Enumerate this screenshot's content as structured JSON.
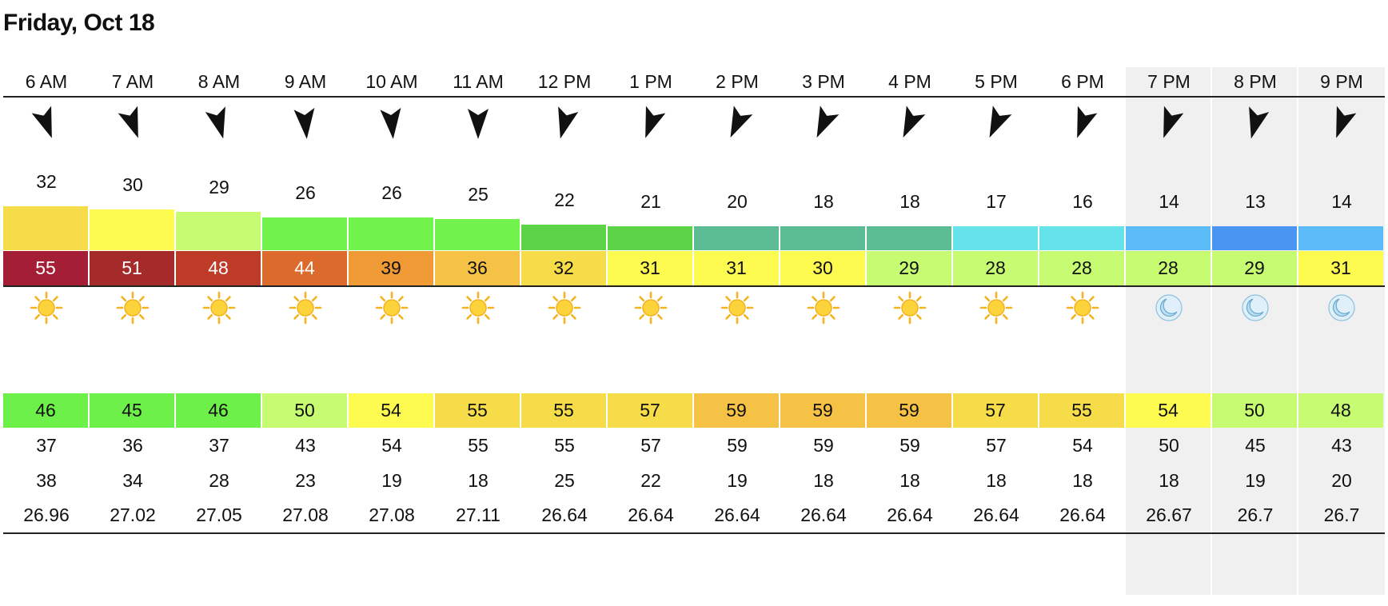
{
  "page_title": "Friday, Oct 18",
  "hours": [
    {
      "time": "6 AM",
      "wind_deg": 160,
      "gust": 32,
      "gust_color": "#f7dc4a",
      "wind": 55,
      "wind_color": "#a41e35",
      "wind_text": "#ffffff",
      "sky": "sun",
      "night": false,
      "temp": 46,
      "temp_color": "#6ef04a",
      "feels": 37,
      "dew": 38,
      "pressure": "26.96"
    },
    {
      "time": "7 AM",
      "wind_deg": 160,
      "gust": 30,
      "gust_color": "#fdfb4f",
      "wind": 51,
      "wind_color": "#a52a2a",
      "wind_text": "#ffffff",
      "sky": "sun",
      "night": false,
      "temp": 45,
      "temp_color": "#6ef04a",
      "feels": 36,
      "dew": 34,
      "pressure": "27.02"
    },
    {
      "time": "8 AM",
      "wind_deg": 165,
      "gust": 29,
      "gust_color": "#c6fb72",
      "wind": 48,
      "wind_color": "#bd3b27",
      "wind_text": "#ffffff",
      "sky": "sun",
      "night": false,
      "temp": 46,
      "temp_color": "#6ef04a",
      "feels": 37,
      "dew": 28,
      "pressure": "27.05"
    },
    {
      "time": "9 AM",
      "wind_deg": 175,
      "gust": 26,
      "gust_color": "#72f24c",
      "wind": 44,
      "wind_color": "#db6a2c",
      "wind_text": "#ffffff",
      "sky": "sun",
      "night": false,
      "temp": 50,
      "temp_color": "#c6fb72",
      "feels": 43,
      "dew": 23,
      "pressure": "27.08"
    },
    {
      "time": "10 AM",
      "wind_deg": 175,
      "gust": 26,
      "gust_color": "#72f24c",
      "wind": 39,
      "wind_color": "#f09a35",
      "wind_text": "#111111",
      "sky": "sun",
      "night": false,
      "temp": 54,
      "temp_color": "#fdfb4f",
      "feels": 54,
      "dew": 19,
      "pressure": "27.08"
    },
    {
      "time": "11 AM",
      "wind_deg": 180,
      "gust": 25,
      "gust_color": "#72f24c",
      "wind": 36,
      "wind_color": "#f5c245",
      "wind_text": "#111111",
      "sky": "sun",
      "night": false,
      "temp": 55,
      "temp_color": "#f7dc4a",
      "feels": 55,
      "dew": 18,
      "pressure": "27.11"
    },
    {
      "time": "12 PM",
      "wind_deg": 195,
      "gust": 22,
      "gust_color": "#5dd447",
      "wind": 32,
      "wind_color": "#f7dc4a",
      "wind_text": "#111111",
      "sky": "sun",
      "night": false,
      "temp": 55,
      "temp_color": "#f7dc4a",
      "feels": 55,
      "dew": 25,
      "pressure": "26.64"
    },
    {
      "time": "1 PM",
      "wind_deg": 200,
      "gust": 21,
      "gust_color": "#5dd447",
      "wind": 31,
      "wind_color": "#fdfb4f",
      "wind_text": "#111111",
      "sky": "sun",
      "night": false,
      "temp": 57,
      "temp_color": "#f7dc4a",
      "feels": 57,
      "dew": 22,
      "pressure": "26.64"
    },
    {
      "time": "2 PM",
      "wind_deg": 205,
      "gust": 20,
      "gust_color": "#5cbd95",
      "wind": 31,
      "wind_color": "#fdfb4f",
      "wind_text": "#111111",
      "sky": "sun",
      "night": false,
      "temp": 59,
      "temp_color": "#f5c245",
      "feels": 59,
      "dew": 19,
      "pressure": "26.64"
    },
    {
      "time": "3 PM",
      "wind_deg": 205,
      "gust": 18,
      "gust_color": "#5cbd95",
      "wind": 30,
      "wind_color": "#fdfb4f",
      "wind_text": "#111111",
      "sky": "sun",
      "night": false,
      "temp": 59,
      "temp_color": "#f5c245",
      "feels": 59,
      "dew": 18,
      "pressure": "26.64"
    },
    {
      "time": "4 PM",
      "wind_deg": 205,
      "gust": 18,
      "gust_color": "#5cbd95",
      "wind": 29,
      "wind_color": "#c6fb72",
      "wind_text": "#111111",
      "sky": "sun",
      "night": false,
      "temp": 59,
      "temp_color": "#f5c245",
      "feels": 59,
      "dew": 18,
      "pressure": "26.64"
    },
    {
      "time": "5 PM",
      "wind_deg": 205,
      "gust": 17,
      "gust_color": "#66e2ea",
      "wind": 28,
      "wind_color": "#c6fb72",
      "wind_text": "#111111",
      "sky": "sun",
      "night": false,
      "temp": 57,
      "temp_color": "#f7dc4a",
      "feels": 57,
      "dew": 18,
      "pressure": "26.64"
    },
    {
      "time": "6 PM",
      "wind_deg": 200,
      "gust": 16,
      "gust_color": "#66e2ea",
      "wind": 28,
      "wind_color": "#c6fb72",
      "wind_text": "#111111",
      "sky": "sun",
      "night": false,
      "temp": 55,
      "temp_color": "#f7dc4a",
      "feels": 54,
      "dew": 18,
      "pressure": "26.64"
    },
    {
      "time": "7 PM",
      "wind_deg": 200,
      "gust": 14,
      "gust_color": "#5bbcf7",
      "wind": 28,
      "wind_color": "#c6fb72",
      "wind_text": "#111111",
      "sky": "moon",
      "night": true,
      "temp": 54,
      "temp_color": "#fdfb4f",
      "feels": 50,
      "dew": 18,
      "pressure": "26.67"
    },
    {
      "time": "8 PM",
      "wind_deg": 195,
      "gust": 13,
      "gust_color": "#4a95f2",
      "wind": 29,
      "wind_color": "#c6fb72",
      "wind_text": "#111111",
      "sky": "moon",
      "night": true,
      "temp": 50,
      "temp_color": "#c6fb72",
      "feels": 45,
      "dew": 19,
      "pressure": "26.7"
    },
    {
      "time": "9 PM",
      "wind_deg": 200,
      "gust": 14,
      "gust_color": "#5bbcf7",
      "wind": 31,
      "wind_color": "#fdfb4f",
      "wind_text": "#111111",
      "sky": "moon",
      "night": true,
      "temp": 48,
      "temp_color": "#c6fb72",
      "feels": 43,
      "dew": 20,
      "pressure": "26.7"
    }
  ]
}
